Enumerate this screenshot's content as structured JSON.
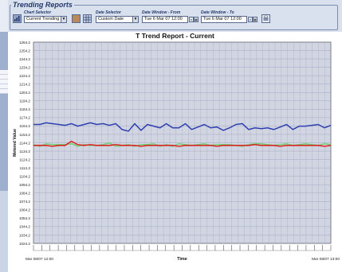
{
  "panel": {
    "title": "Trending Reports"
  },
  "controls": {
    "chart_selector": {
      "label": "Chart Selector",
      "value": "Current Trending"
    },
    "date_selector": {
      "label": "Date Selector",
      "value": "Custom Date"
    },
    "window_from": {
      "label": "Date Window - From",
      "value": "Tue 6 Mar 07 12:00"
    },
    "window_to": {
      "label": "Date Window - To",
      "value": "Tue 6 Mar 07 12:00"
    }
  },
  "icons": [
    "chart-icon",
    "grid-icon",
    "calendar-icon",
    "print-icon"
  ],
  "colors": {
    "panel_bg": "#d9e1ee",
    "plot_bg": "#d4d8e4",
    "blue": "#2f3fb0",
    "green": "#6bd06b",
    "red": "#e01818"
  },
  "chart_data": {
    "type": "line",
    "title": "T  Trend Report - Current",
    "xlabel": "Time",
    "ylabel": "Metered Value",
    "ylim": [
      1024.2,
      1264.2
    ],
    "yticks": [
      1024.2,
      1034.2,
      1044.2,
      1054.2,
      1064.2,
      1074.2,
      1084.2,
      1094.2,
      1104.2,
      1114.2,
      1124.2,
      1134.2,
      1144.2,
      1154.2,
      1164.2,
      1174.2,
      1184.2,
      1194.2,
      1204.2,
      1214.2,
      1224.2,
      1234.2,
      1244.2,
      1254.2,
      1264.2
    ],
    "ytick_labels": [
      "1024.2",
      "1034.2",
      "1044.2",
      "1054.2",
      "1064.2",
      "1074.2",
      "1084.2",
      "1094.2",
      "1104.2",
      "1114.2",
      "1124.2",
      "1134.2",
      "1144.2",
      "1154.2",
      "1164.2",
      "1174.2",
      "1184.2",
      "1194.2",
      "1204.2",
      "1214.2",
      "1224.2",
      "1234.2",
      "1244.2",
      "1254.2",
      "1264.2"
    ],
    "x_start_label": "Mar 08/07  12:00",
    "x_end_label": "Mar 08/07  13:00",
    "grid": true,
    "series": [
      {
        "color": "#2f3fb0",
        "values": [
          1166,
          1166,
          1168,
          1167,
          1166,
          1165,
          1167,
          1164,
          1166,
          1168,
          1166,
          1167,
          1165,
          1167,
          1160,
          1158,
          1167,
          1159,
          1166,
          1164,
          1162,
          1167,
          1162,
          1162,
          1167,
          1160,
          1163,
          1166,
          1162,
          1163,
          1159,
          1162,
          1166,
          1167,
          1160,
          1162,
          1161,
          1162,
          1160,
          1163,
          1166,
          1160,
          1164,
          1164,
          1165,
          1166,
          1162,
          1165
        ]
      },
      {
        "color": "#6bd06b",
        "values": [
          1142,
          1140,
          1143,
          1142,
          1142,
          1142,
          1143,
          1140,
          1142,
          1141,
          1141,
          1142,
          1144,
          1140,
          1141,
          1142,
          1140,
          1142,
          1142,
          1143,
          1140,
          1142,
          1140,
          1143,
          1142,
          1141,
          1142,
          1143,
          1141,
          1142,
          1142,
          1142,
          1141,
          1140,
          1142,
          1143,
          1143,
          1142,
          1141,
          1142,
          1143,
          1141,
          1142,
          1143,
          1142,
          1141,
          1143,
          1142
        ]
      },
      {
        "color": "#e01818",
        "values": [
          1141,
          1141,
          1141,
          1140,
          1141,
          1141,
          1146,
          1142,
          1141,
          1142,
          1141,
          1141,
          1141,
          1142,
          1141,
          1141,
          1141,
          1140,
          1141,
          1141,
          1141,
          1141,
          1141,
          1140,
          1141,
          1141,
          1141,
          1141,
          1141,
          1140,
          1141,
          1141,
          1141,
          1141,
          1141,
          1142,
          1141,
          1141,
          1141,
          1140,
          1141,
          1141,
          1141,
          1141,
          1141,
          1141,
          1140,
          1141
        ]
      }
    ]
  }
}
